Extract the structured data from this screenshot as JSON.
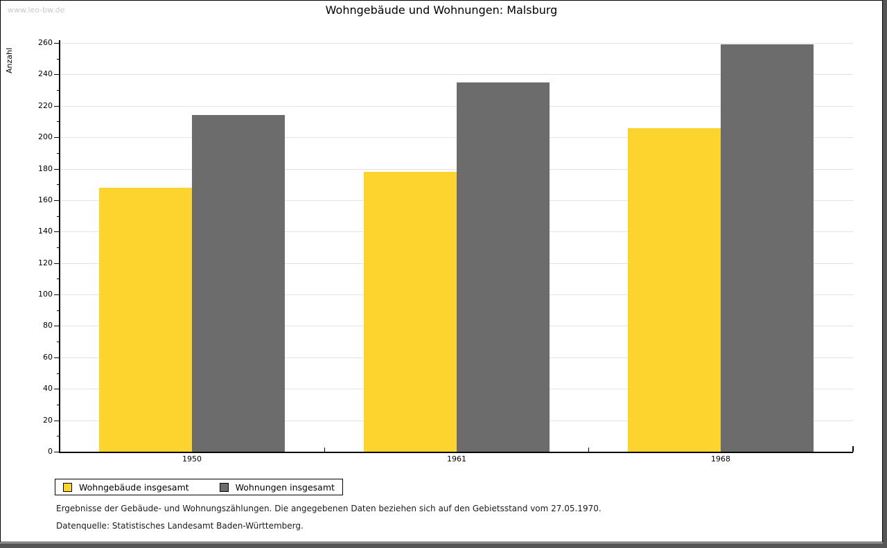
{
  "window": {
    "watermark": "www.leo-bw.de"
  },
  "title": "Wohngebäude und Wohnungen: Malsburg",
  "chart_data": {
    "type": "bar",
    "title": "Wohngebäude und Wohnungen: Malsburg",
    "xlabel": "",
    "ylabel": "Anzahl",
    "categories": [
      "1950",
      "1961",
      "1968"
    ],
    "series": [
      {
        "name": "Wohngebäude insgesamt",
        "color": "#FDD32E",
        "values": [
          168,
          178,
          206
        ]
      },
      {
        "name": "Wohnungen insgesamt",
        "color": "#6C6C6C",
        "values": [
          214,
          235,
          259
        ]
      }
    ],
    "ylim": [
      0,
      260
    ],
    "ytick_step": 20,
    "ytick_minor_step": 10,
    "grid": true,
    "legend_position": "bottom-left",
    "gridline_color": "#e2e2e2"
  },
  "footer": {
    "line1": "Ergebnisse der Gebäude- und Wohnungszählungen. Die angegebenen Daten beziehen sich auf den Gebietsstand vom 27.05.1970.",
    "line2": "Datenquelle: Statistisches Landesamt Baden-Württemberg."
  }
}
